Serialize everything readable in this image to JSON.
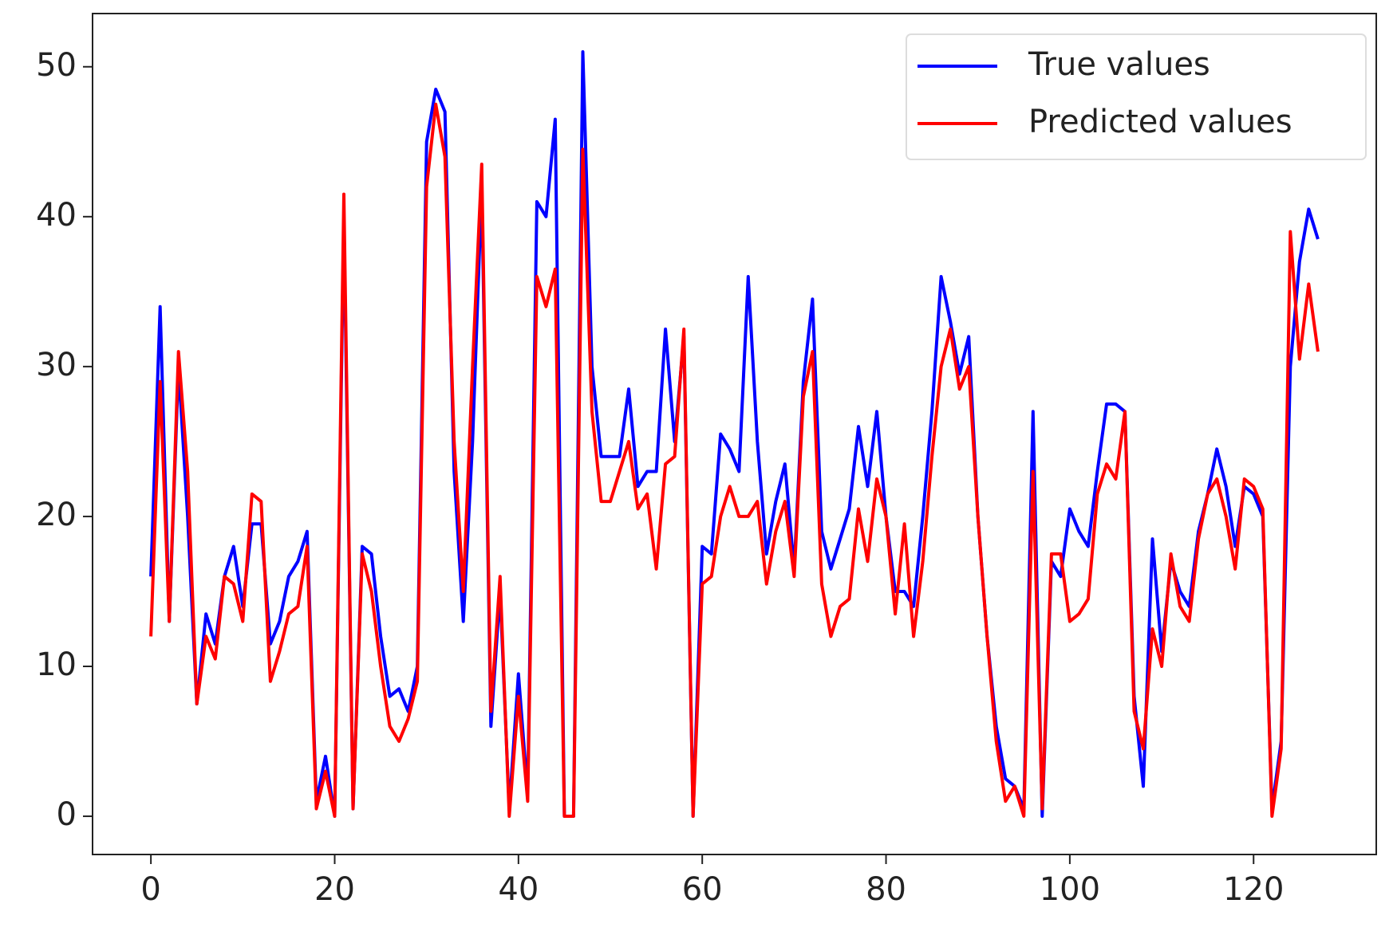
{
  "chart_data": {
    "type": "line",
    "x": [
      0,
      1,
      2,
      3,
      4,
      5,
      6,
      7,
      8,
      9,
      10,
      11,
      12,
      13,
      14,
      15,
      16,
      17,
      18,
      19,
      20,
      21,
      22,
      23,
      24,
      25,
      26,
      27,
      28,
      29,
      30,
      31,
      32,
      33,
      34,
      35,
      36,
      37,
      38,
      39,
      40,
      41,
      42,
      43,
      44,
      45,
      46,
      47,
      48,
      49,
      50,
      51,
      52,
      53,
      54,
      55,
      56,
      57,
      58,
      59,
      60,
      61,
      62,
      63,
      64,
      65,
      66,
      67,
      68,
      69,
      70,
      71,
      72,
      73,
      74,
      75,
      76,
      77,
      78,
      79,
      80,
      81,
      82,
      83,
      84,
      85,
      86,
      87,
      88,
      89,
      90,
      91,
      92,
      93,
      94,
      95,
      96,
      97,
      98,
      99,
      100,
      101,
      102,
      103,
      104,
      105,
      106,
      107,
      108,
      109,
      110,
      111,
      112,
      113,
      114,
      115,
      116,
      117,
      118,
      119,
      120,
      121,
      122,
      123,
      124,
      125,
      126,
      127
    ],
    "series": [
      {
        "name": "True values",
        "color": "#0000ff",
        "values": [
          16,
          34,
          13,
          30,
          20,
          7.5,
          13.5,
          11.5,
          16,
          18,
          14,
          19.5,
          19.5,
          11.5,
          13,
          16,
          17,
          19,
          1,
          4,
          0,
          40,
          0.5,
          18,
          17.5,
          12,
          8,
          8.5,
          7,
          10,
          45,
          48.5,
          47,
          23,
          13,
          25,
          42,
          6,
          15,
          0.5,
          9.5,
          1.5,
          41,
          40,
          46.5,
          0,
          0,
          51,
          30,
          24,
          24,
          24,
          28.5,
          22,
          23,
          23,
          32.5,
          25,
          32,
          0,
          18,
          17.5,
          25.5,
          24.5,
          23,
          36,
          25,
          17.5,
          21,
          23.5,
          16.5,
          29,
          34.5,
          19,
          16.5,
          18.5,
          20.5,
          26,
          22,
          27,
          20,
          15,
          15,
          14,
          20,
          27,
          36,
          33,
          29.5,
          32,
          20,
          12,
          6,
          2.5,
          2,
          0.5,
          27,
          0,
          17,
          16,
          20.5,
          19,
          18,
          23,
          27.5,
          27.5,
          27,
          8,
          2,
          18.5,
          11,
          17,
          15,
          14,
          19,
          21.5,
          24.5,
          22,
          18,
          22,
          21.5,
          20,
          0.5,
          5,
          30,
          37,
          40.5,
          38.5
        ]
      },
      {
        "name": "Predicted values",
        "color": "#ff0000",
        "values": [
          12,
          29,
          13,
          31,
          23,
          7.5,
          12,
          10.5,
          16,
          15.5,
          13,
          21.5,
          21,
          9,
          11,
          13.5,
          14,
          18,
          0.5,
          3,
          0,
          41.5,
          0.5,
          17.5,
          15,
          10,
          6,
          5,
          6.5,
          9,
          42,
          47.5,
          44,
          25,
          15,
          30,
          43.5,
          7,
          16,
          0,
          8,
          1,
          36,
          34,
          36.5,
          0,
          0,
          44.5,
          27,
          21,
          21,
          23,
          25,
          20.5,
          21.5,
          16.5,
          23.5,
          24,
          32.5,
          0,
          15.5,
          16,
          20,
          22,
          20,
          20,
          21,
          15.5,
          19,
          21,
          16,
          28,
          31,
          15.5,
          12,
          14,
          14.5,
          20.5,
          17,
          22.5,
          20,
          13.5,
          19.5,
          12,
          17,
          24,
          30,
          32.5,
          28.5,
          30,
          20,
          12,
          5,
          1,
          2,
          0,
          23,
          0.5,
          17.5,
          17.5,
          13,
          13.5,
          14.5,
          21.5,
          23.5,
          22.5,
          27,
          7,
          4.5,
          12.5,
          10,
          17.5,
          14,
          13,
          18.5,
          21.5,
          22.5,
          20,
          16.5,
          22.5,
          22,
          20.5,
          0,
          4.5,
          39,
          30.5,
          35.5,
          31
        ]
      }
    ],
    "xlim": [
      -6.35,
      133.35
    ],
    "xticks": [
      0,
      20,
      40,
      60,
      80,
      100,
      120
    ],
    "ylim": [
      -2.55,
      53.55
    ],
    "yticks": [
      0,
      10,
      20,
      30,
      40,
      50
    ],
    "grid": false,
    "legend": "upper right"
  }
}
